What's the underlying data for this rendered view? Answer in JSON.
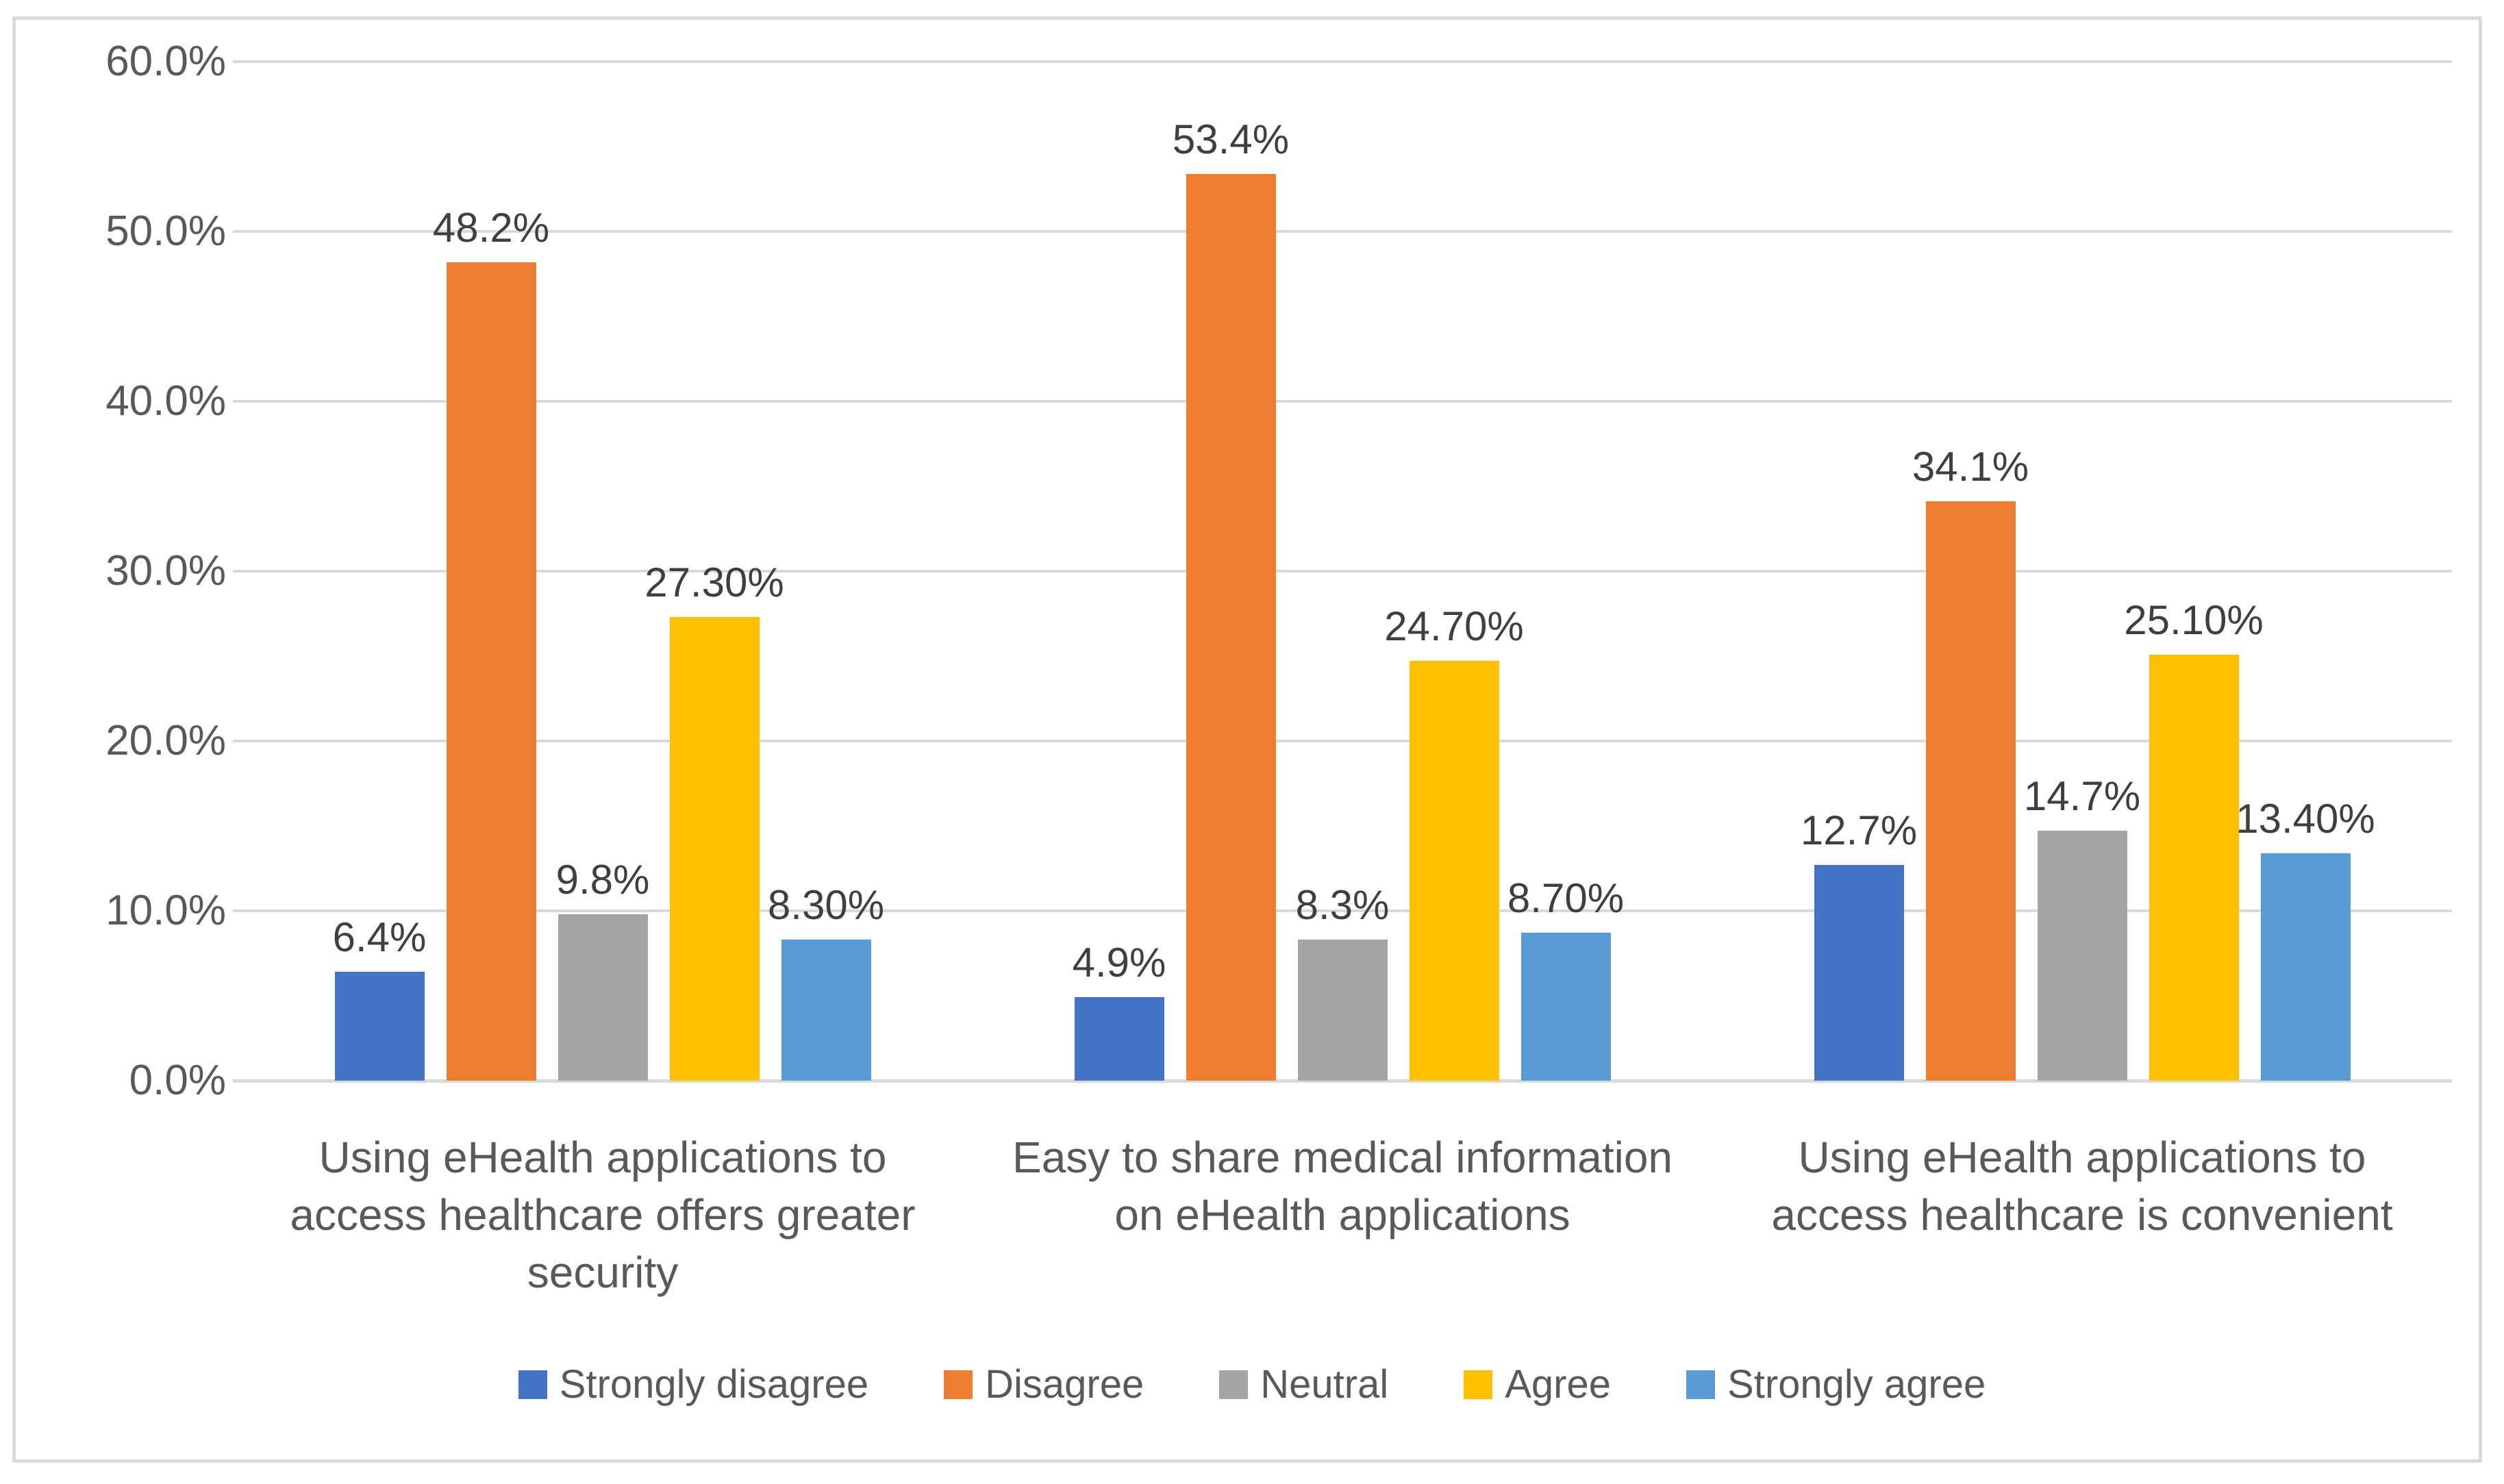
{
  "page": {
    "background": "#FFFFFF",
    "frame_border_color": "#D9D9D9",
    "gridline_color": "#D9D9D9",
    "axis_text_color": "#595959",
    "data_label_color": "#3F3F3F"
  },
  "chart_data": {
    "type": "bar",
    "title": "",
    "categories": [
      "Using eHealth applications to access healthcare offers greater security",
      "Easy to share medical information on eHealth applications",
      "Using eHealth applications to access healthcare is convenient"
    ],
    "series": [
      {
        "name": "Strongly disagree",
        "color": "#4472C4",
        "values": [
          6.4,
          4.9,
          12.7
        ],
        "data_labels": [
          "6.4%",
          "4.9%",
          "12.7%"
        ]
      },
      {
        "name": "Disagree",
        "color": "#ED7D31",
        "values": [
          48.2,
          53.4,
          34.1
        ],
        "data_labels": [
          "48.2%",
          "53.4%",
          "34.1%"
        ]
      },
      {
        "name": "Neutral",
        "color": "#A5A5A5",
        "values": [
          9.8,
          8.3,
          14.7
        ],
        "data_labels": [
          "9.8%",
          "8.3%",
          "14.7%"
        ]
      },
      {
        "name": "Agree",
        "color": "#FFC000",
        "values": [
          27.3,
          24.7,
          25.1
        ],
        "data_labels": [
          "27.30%",
          "24.70%",
          "25.10%"
        ]
      },
      {
        "name": "Strongly agree",
        "color": "#5B9BD5",
        "values": [
          8.3,
          8.7,
          13.4
        ],
        "data_labels": [
          "8.30%",
          "8.70%",
          "13.40%"
        ]
      }
    ],
    "y_axis": {
      "min": 0,
      "max": 60,
      "step": 10,
      "tick_labels": [
        "60.0%",
        "50.0%",
        "40.0%",
        "30.0%",
        "20.0%",
        "10.0%",
        "0.0%"
      ]
    },
    "grid": true,
    "legend_position": "bottom"
  }
}
